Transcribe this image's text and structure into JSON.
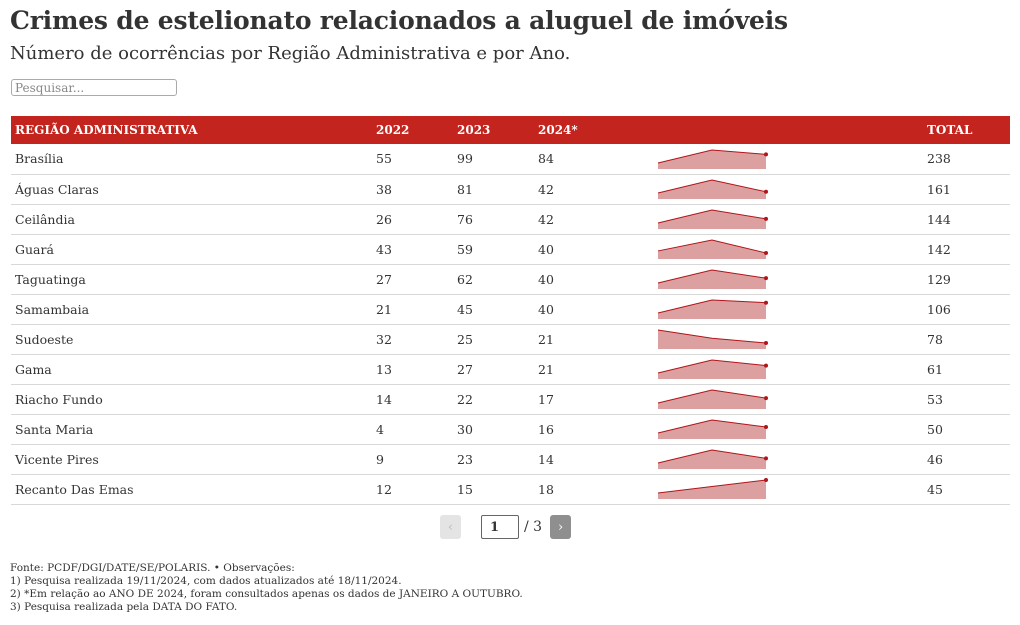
{
  "title": "Crimes de estelionato relacionados a aluguel de imóveis",
  "subtitle": "Número de ocorrências por Região Administrativa e por Ano.",
  "search": {
    "placeholder": "Pesquisar..."
  },
  "colors": {
    "header_bg": "#c3241d",
    "spark_fill": "#dca0a0",
    "spark_line": "#b0151a",
    "spark_dot": "#b0151a"
  },
  "chart_data": {
    "type": "table",
    "columns": [
      "REGIÃO ADMINISTRATIVA",
      "2022",
      "2023",
      "2024*",
      "",
      "TOTAL"
    ],
    "rows": [
      {
        "region": "Brasília",
        "v2022": 55,
        "v2023": 99,
        "v2024": 84,
        "total": 238
      },
      {
        "region": "Águas Claras",
        "v2022": 38,
        "v2023": 81,
        "v2024": 42,
        "total": 161
      },
      {
        "region": "Ceilândia",
        "v2022": 26,
        "v2023": 76,
        "v2024": 42,
        "total": 144
      },
      {
        "region": "Guará",
        "v2022": 43,
        "v2023": 59,
        "v2024": 40,
        "total": 142
      },
      {
        "region": "Taguatinga",
        "v2022": 27,
        "v2023": 62,
        "v2024": 40,
        "total": 129
      },
      {
        "region": "Samambaia",
        "v2022": 21,
        "v2023": 45,
        "v2024": 40,
        "total": 106
      },
      {
        "region": "Sudoeste",
        "v2022": 32,
        "v2023": 25,
        "v2024": 21,
        "total": 78
      },
      {
        "region": "Gama",
        "v2022": 13,
        "v2023": 27,
        "v2024": 21,
        "total": 61
      },
      {
        "region": "Riacho Fundo",
        "v2022": 14,
        "v2023": 22,
        "v2024": 17,
        "total": 53
      },
      {
        "region": "Santa Maria",
        "v2022": 4,
        "v2023": 30,
        "v2024": 16,
        "total": 50
      },
      {
        "region": "Vicente Pires",
        "v2022": 9,
        "v2023": 23,
        "v2024": 14,
        "total": 46
      },
      {
        "region": "Recanto Das Emas",
        "v2022": 12,
        "v2023": 15,
        "v2024": 18,
        "total": 45
      }
    ]
  },
  "pagination": {
    "prev_label": "‹",
    "next_label": "›",
    "current_page": "1",
    "separator": "/",
    "total_pages": "3"
  },
  "notes": {
    "source": "Fonte: PCDF/DGI/DATE/SE/POLARIS. • Observações:",
    "note1": "1) Pesquisa realizada 19/11/2024, com dados atualizados até 18/11/2024.",
    "note2": "2) *Em relação ao ANO DE 2024, foram consultados apenas os dados de JANEIRO A OUTUBRO.",
    "note3": "3) Pesquisa realizada pela DATA DO FATO."
  }
}
